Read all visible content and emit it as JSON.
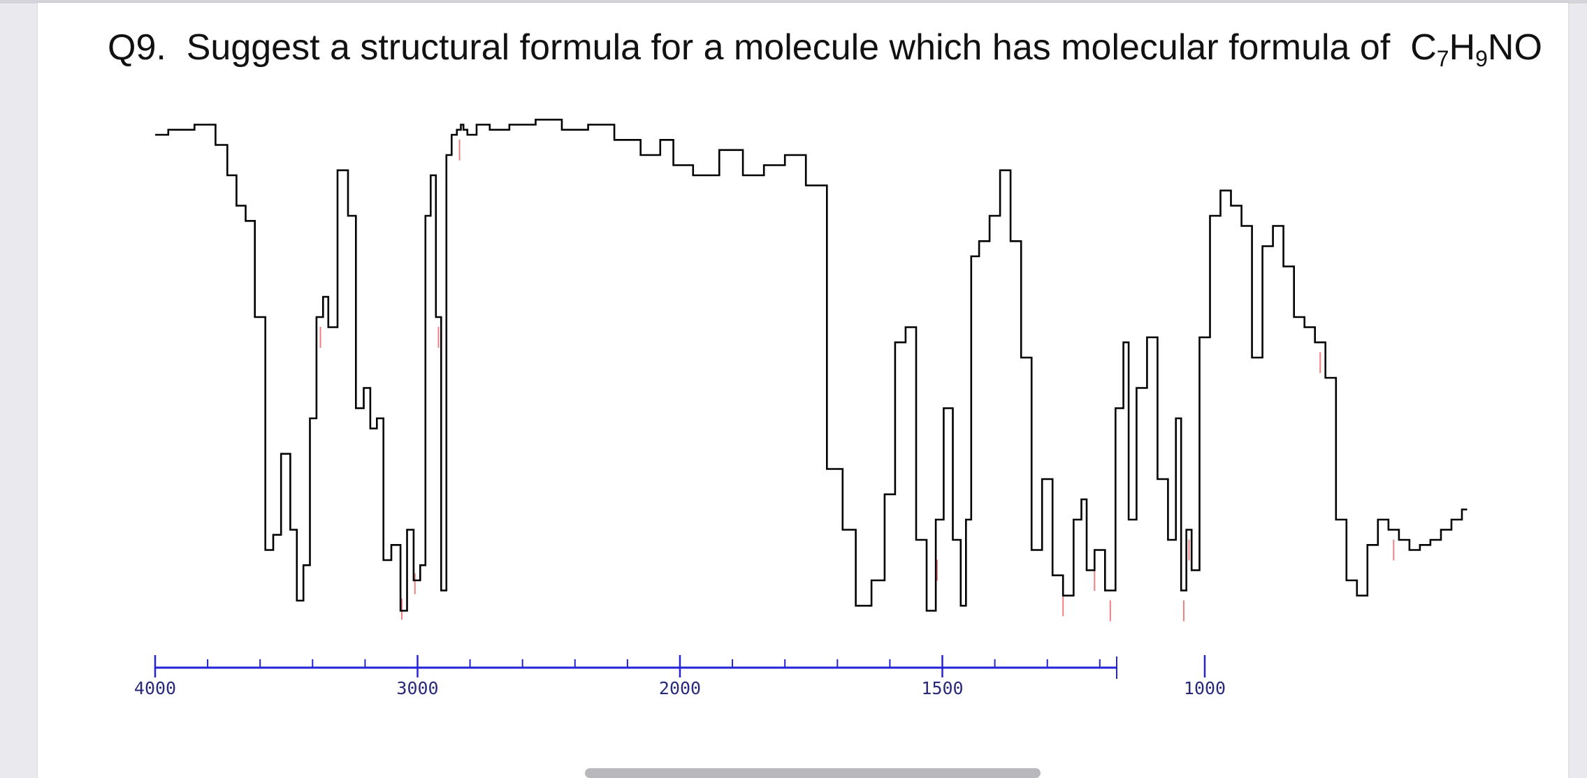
{
  "question": {
    "number": "Q9.",
    "text_before": "Suggest a  structural formula for a molecule which has molecular formula of",
    "formula": [
      {
        "sym": "C",
        "sub": "7"
      },
      {
        "sym": "H",
        "sub": "9"
      },
      {
        "sym": "NO",
        "sub": ""
      }
    ]
  },
  "chart_data": {
    "type": "line",
    "title": "",
    "xlabel": "",
    "ylabel": "",
    "x_reversed": true,
    "xlim": [
      4000,
      450
    ],
    "ylim": [
      0,
      100
    ],
    "grid": false,
    "x_ticks": [
      4000,
      3000,
      2000,
      1500,
      1000
    ],
    "x_tick_labels": [
      "4000",
      "3000",
      "2000",
      "1500",
      "1000"
    ],
    "minor_tick_step": 200,
    "line_color": "#000000",
    "axis_color": "#2323d8",
    "peak_marker_color": "#f08080",
    "series": [
      {
        "x": [
          4000,
          3900,
          3800,
          3740,
          3710,
          3670,
          3640,
          3600,
          3560,
          3540,
          3500,
          3470,
          3450,
          3420,
          3400,
          3370,
          3350,
          3330,
          3280,
          3250,
          3220,
          3190,
          3170,
          3140,
          3120,
          3080,
          3050,
          3030,
          3000,
          2980,
          2960,
          2940,
          2920,
          2900,
          2880,
          2860,
          2840,
          2830,
          2820,
          2800,
          2750,
          2700,
          2600,
          2500,
          2400,
          2300,
          2200,
          2100,
          2050,
          2000,
          1950,
          1900,
          1860,
          1820,
          1780,
          1740,
          1700,
          1680,
          1650,
          1620,
          1600,
          1580,
          1560,
          1540,
          1520,
          1505,
          1490,
          1470,
          1460,
          1450,
          1440,
          1420,
          1400,
          1380,
          1360,
          1340,
          1320,
          1300,
          1280,
          1260,
          1240,
          1230,
          1220,
          1200,
          1180,
          1160,
          1150,
          1140,
          1120,
          1100,
          1080,
          1060,
          1050,
          1040,
          1030,
          1020,
          1000,
          980,
          960,
          940,
          920,
          900,
          880,
          860,
          840,
          820,
          800,
          780,
          760,
          740,
          720,
          700,
          680,
          660,
          640,
          620,
          600,
          580,
          560,
          540,
          520,
          500
        ],
        "y": [
          96,
          97,
          98,
          94,
          88,
          82,
          79,
          60,
          14,
          17,
          33,
          18,
          4,
          11,
          40,
          60,
          64,
          58,
          89,
          80,
          42,
          46,
          38,
          40,
          12,
          15,
          2,
          18,
          8,
          11,
          80,
          88,
          60,
          6,
          92,
          96,
          97,
          98,
          97,
          96,
          98,
          97,
          98,
          99,
          97,
          98,
          95,
          92,
          95,
          90,
          88,
          93,
          88,
          90,
          92,
          86,
          30,
          18,
          3,
          8,
          25,
          55,
          58,
          16,
          2,
          20,
          42,
          16,
          3,
          20,
          72,
          75,
          80,
          89,
          75,
          52,
          14,
          28,
          9,
          5,
          20,
          24,
          10,
          14,
          6,
          42,
          55,
          20,
          46,
          56,
          28,
          16,
          40,
          6,
          18,
          10,
          56,
          80,
          85,
          82,
          78,
          52,
          74,
          78,
          70,
          60,
          58,
          55,
          48,
          20,
          8,
          5,
          15,
          20,
          18,
          16,
          14,
          15,
          16,
          18,
          20,
          22
        ]
      }
    ],
    "peak_markers": [
      3460,
      3370,
      3060,
      3040,
      3010,
      2970,
      2920,
      2840,
      1610,
      1510,
      1480,
      1270,
      1250,
      1210,
      1180,
      1070,
      1040,
      1030,
      780,
      640
    ]
  }
}
